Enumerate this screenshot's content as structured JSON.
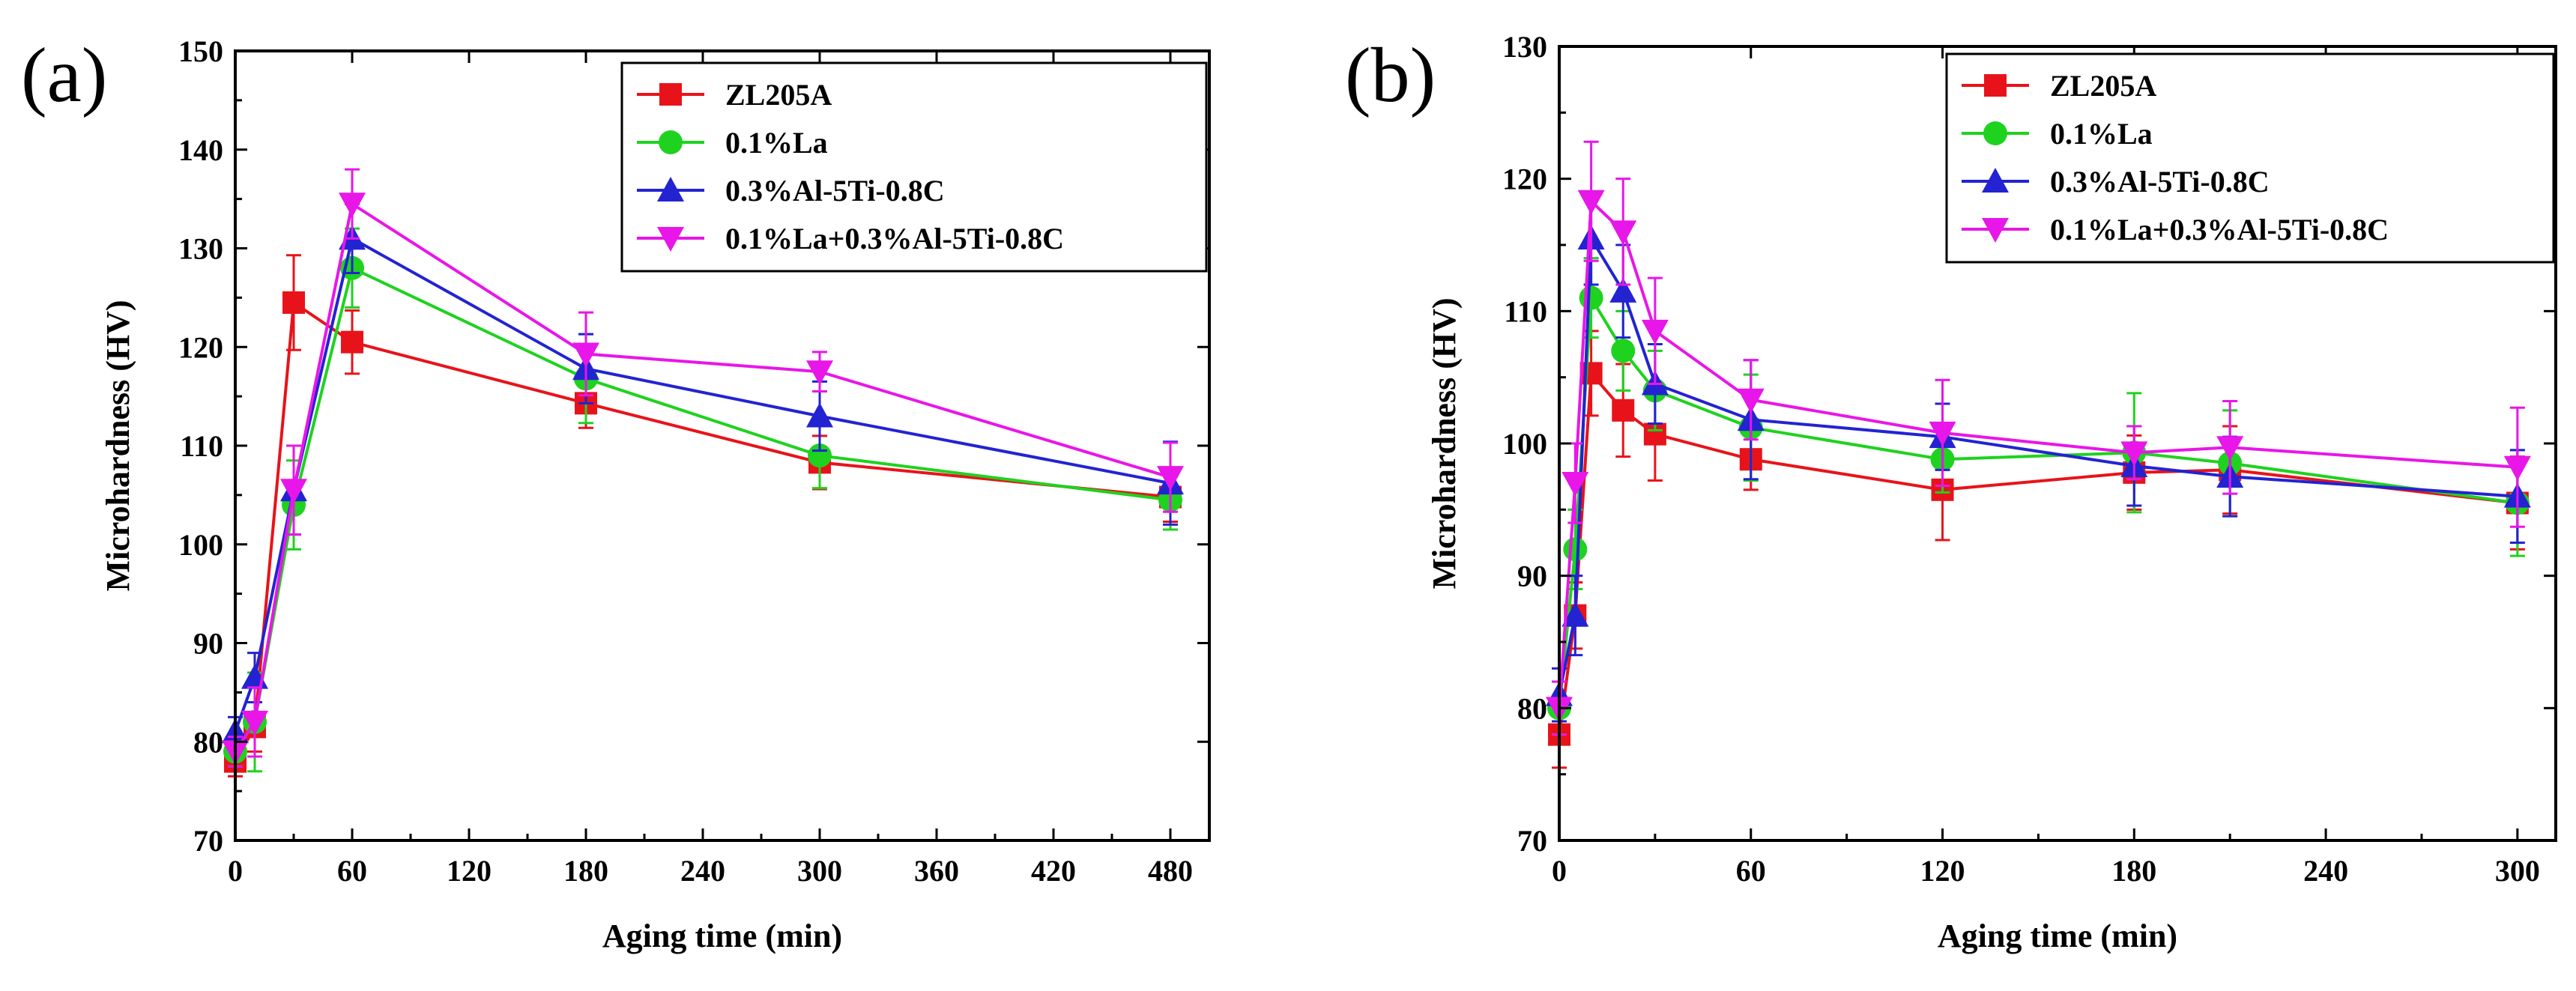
{
  "chart_data": [
    {
      "type": "line",
      "panel_label": "(a)",
      "xlabel": "Aging time (min)",
      "ylabel": "Microhardness (HV)",
      "xlim": [
        0,
        500
      ],
      "ylim": [
        70,
        150
      ],
      "xticks": [
        0,
        60,
        120,
        180,
        240,
        300,
        360,
        420,
        480
      ],
      "yticks": [
        70,
        80,
        90,
        100,
        110,
        120,
        130,
        140,
        150
      ],
      "grid": false,
      "legend_position": "top-right",
      "series": [
        {
          "name": "ZL205A",
          "marker": "square",
          "color": "#e8131a",
          "points": [
            [
              0,
              78
            ],
            [
              10,
              81.5
            ],
            [
              30,
              124.5
            ],
            [
              60,
              120.5
            ],
            [
              180,
              114.3
            ],
            [
              300,
              108.3
            ],
            [
              480,
              104.8
            ]
          ],
          "errors": [
            1.5,
            2.5,
            4.8,
            3.2,
            2.5,
            2.7,
            2.5
          ]
        },
        {
          "name": "0.1%La",
          "marker": "circle",
          "color": "#1fd21f",
          "points": [
            [
              0,
              79
            ],
            [
              10,
              82
            ],
            [
              30,
              104
            ],
            [
              60,
              128
            ],
            [
              180,
              116.8
            ],
            [
              300,
              109
            ],
            [
              480,
              104.5
            ]
          ],
          "errors": [
            1.5,
            5,
            4.5,
            4,
            4.5,
            3.3,
            3
          ]
        },
        {
          "name": "0.3%Al-5Ti-0.8C",
          "marker": "triangle-up",
          "color": "#2323d2",
          "points": [
            [
              0,
              81
            ],
            [
              10,
              86.5
            ],
            [
              30,
              105.5
            ],
            [
              60,
              131
            ],
            [
              180,
              117.8
            ],
            [
              300,
              113
            ],
            [
              480,
              106.2
            ]
          ],
          "errors": [
            1.5,
            2.5,
            4.5,
            3.5,
            3.5,
            3.5,
            4.2
          ]
        },
        {
          "name": "0.1%La+0.3%Al-5Ti-0.8C",
          "marker": "triangle-down",
          "color": "#e816e8",
          "points": [
            [
              0,
              79
            ],
            [
              10,
              82
            ],
            [
              30,
              105.5
            ],
            [
              60,
              134.5
            ],
            [
              180,
              119.3
            ],
            [
              300,
              117.5
            ],
            [
              480,
              106.8
            ]
          ],
          "errors": [
            1.5,
            3.5,
            4.5,
            3.5,
            4.2,
            2,
            3.5
          ]
        }
      ]
    },
    {
      "type": "line",
      "panel_label": "(b)",
      "xlabel": "Aging time (min)",
      "ylabel": "Microhardness (HV)",
      "xlim": [
        0,
        312
      ],
      "ylim": [
        70,
        130
      ],
      "xticks": [
        0,
        60,
        120,
        180,
        240,
        300
      ],
      "yticks": [
        70,
        80,
        90,
        100,
        110,
        120,
        130
      ],
      "grid": false,
      "legend_position": "top-right",
      "series": [
        {
          "name": "ZL205A",
          "marker": "square",
          "color": "#e8131a",
          "points": [
            [
              0,
              78
            ],
            [
              5,
              87
            ],
            [
              10,
              105.3
            ],
            [
              20,
              102.5
            ],
            [
              30,
              100.7
            ],
            [
              60,
              98.8
            ],
            [
              120,
              96.5
            ],
            [
              180,
              97.8
            ],
            [
              210,
              98
            ],
            [
              300,
              95.5
            ]
          ],
          "errors": [
            2.5,
            2.5,
            3.2,
            3.5,
            3.5,
            2.3,
            3.8,
            2.8,
            3.3,
            3.5
          ]
        },
        {
          "name": "0.1%La",
          "marker": "circle",
          "color": "#1fd21f",
          "points": [
            [
              0,
              80
            ],
            [
              5,
              92
            ],
            [
              10,
              111
            ],
            [
              20,
              107
            ],
            [
              30,
              104
            ],
            [
              60,
              101.2
            ],
            [
              120,
              98.8
            ],
            [
              180,
              99.3
            ],
            [
              210,
              98.5
            ],
            [
              300,
              95.5
            ]
          ],
          "errors": [
            2,
            3,
            3,
            3,
            3,
            4,
            2.5,
            4.5,
            4,
            4
          ]
        },
        {
          "name": "0.3%Al-5Ti-0.8C",
          "marker": "triangle-up",
          "color": "#2323d2",
          "points": [
            [
              0,
              81
            ],
            [
              5,
              87
            ],
            [
              10,
              115.5
            ],
            [
              20,
              111.5
            ],
            [
              30,
              104.5
            ],
            [
              60,
              101.8
            ],
            [
              120,
              100.5
            ],
            [
              180,
              98.3
            ],
            [
              210,
              97.5
            ],
            [
              300,
              96
            ]
          ],
          "errors": [
            2,
            3,
            3.5,
            3.5,
            3,
            4.5,
            2.5,
            3,
            3,
            3.5
          ]
        },
        {
          "name": "0.1%La+0.3%Al-5Ti-0.8C",
          "marker": "triangle-down",
          "color": "#e816e8",
          "points": [
            [
              0,
              80
            ],
            [
              5,
              97
            ],
            [
              10,
              118.3
            ],
            [
              20,
              116
            ],
            [
              30,
              108.5
            ],
            [
              60,
              103.3
            ],
            [
              120,
              100.8
            ],
            [
              180,
              99.3
            ],
            [
              210,
              99.7
            ],
            [
              300,
              98.2
            ]
          ],
          "errors": [
            2,
            3,
            4.5,
            4,
            4,
            3,
            4,
            2,
            3.5,
            4.5
          ]
        }
      ]
    }
  ]
}
